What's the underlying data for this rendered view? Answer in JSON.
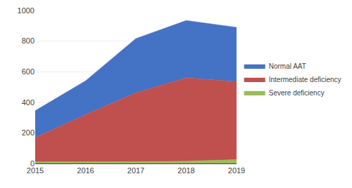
{
  "chart_data": {
    "type": "area",
    "stacked": true,
    "x": [
      2015,
      2016,
      2017,
      2018,
      2019
    ],
    "series": [
      {
        "name": "Severe deficiency",
        "color": "#9BBB59",
        "values": [
          10,
          10,
          12,
          15,
          25
        ]
      },
      {
        "name": "Intermediate deficiency",
        "color": "#C0504D",
        "values": [
          160,
          310,
          450,
          545,
          510
        ]
      },
      {
        "name": "Normal AAT",
        "color": "#4472C4",
        "values": [
          175,
          220,
          355,
          375,
          355
        ]
      }
    ],
    "xlim": [
      2015,
      2019
    ],
    "xticks": [
      2015,
      2016,
      2017,
      2018,
      2019
    ],
    "ylim": [
      0,
      1000
    ],
    "yticks": [
      0,
      200,
      400,
      600,
      800,
      1000
    ],
    "grid": true,
    "legend": "right"
  }
}
